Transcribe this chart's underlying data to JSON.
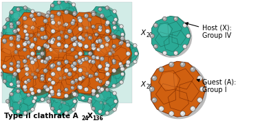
{
  "background_color": "#ffffff",
  "teal_main": "#2aaa96",
  "teal_dark": "#1a6b5a",
  "teal_light": "#5dcfbf",
  "orange_main": "#d06010",
  "orange_light": "#e88030",
  "orange_dark": "#7a2800",
  "ball_light": "#dddddd",
  "ball_dark": "#555555",
  "ball_mid": "#aaaaaa",
  "left_label": "Type II clathrate A",
  "left_sub1": "24",
  "left_sub2": "X",
  "left_sub3": "136",
  "x20_label": "X",
  "x20_sub": "20",
  "x28_label": "X",
  "x28_sub": "28",
  "host_line1": "Host (X):",
  "host_line2": "Group IV",
  "guest_line1": "Guest (A):",
  "guest_line2": "Group I",
  "label_fontsize": 7.5,
  "annot_fontsize": 7.0,
  "sub_fontsize": 5.5
}
